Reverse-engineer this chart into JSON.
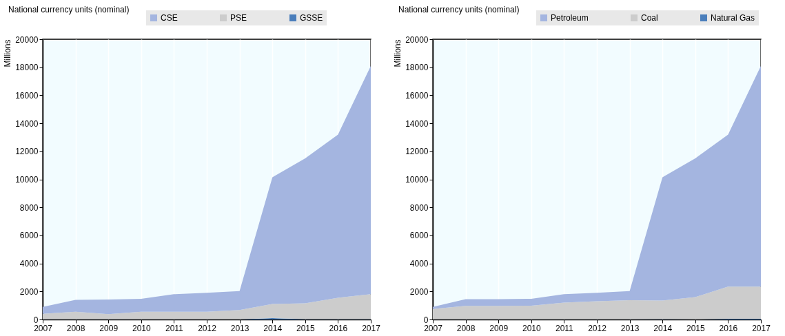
{
  "chart_data": [
    {
      "type": "area",
      "stacked": true,
      "ylabel": "Millions",
      "annotations": [
        "National currency units (nominal)"
      ],
      "x": [
        2007,
        2008,
        2009,
        2010,
        2011,
        2012,
        2013,
        2014,
        2015,
        2016,
        2017
      ],
      "xlim": [
        2007,
        2017
      ],
      "xticks": [
        2007,
        2008,
        2009,
        2010,
        2011,
        2012,
        2013,
        2014,
        2015,
        2016,
        2017
      ],
      "ylim": [
        0,
        20000
      ],
      "yticks": [
        0,
        2000,
        4000,
        6000,
        8000,
        10000,
        12000,
        14000,
        16000,
        18000,
        20000
      ],
      "grid": "x",
      "legend": "top",
      "series": [
        {
          "name": "GSSE",
          "color": "#4a7ebb",
          "values": [
            10,
            10,
            10,
            10,
            10,
            10,
            10,
            100,
            20,
            20,
            20
          ]
        },
        {
          "name": "PSE",
          "color": "#cccccc",
          "values": [
            390,
            540,
            370,
            540,
            540,
            540,
            670,
            1000,
            1130,
            1530,
            1780
          ]
        },
        {
          "name": "CSE",
          "color": "#a4b5e0",
          "values": [
            500,
            850,
            1050,
            930,
            1250,
            1350,
            1350,
            9050,
            10350,
            11650,
            16300
          ]
        }
      ]
    },
    {
      "type": "area",
      "stacked": true,
      "ylabel": "Millions",
      "annotations": [
        "National currency units (nominal)"
      ],
      "x": [
        2007,
        2008,
        2009,
        2010,
        2011,
        2012,
        2013,
        2014,
        2015,
        2016,
        2017
      ],
      "xlim": [
        2007,
        2017
      ],
      "xticks": [
        2007,
        2008,
        2009,
        2010,
        2011,
        2012,
        2013,
        2014,
        2015,
        2016,
        2017
      ],
      "ylim": [
        0,
        20000
      ],
      "yticks": [
        0,
        2000,
        4000,
        6000,
        8000,
        10000,
        12000,
        14000,
        16000,
        18000,
        20000
      ],
      "grid": "x",
      "legend": "top",
      "series": [
        {
          "name": "Natural Gas",
          "color": "#4a7ebb",
          "values": [
            10,
            10,
            10,
            10,
            10,
            10,
            10,
            30,
            10,
            50,
            50
          ]
        },
        {
          "name": "Coal",
          "color": "#cccccc",
          "values": [
            740,
            960,
            960,
            970,
            1190,
            1290,
            1370,
            1320,
            1590,
            2300,
            2300
          ]
        },
        {
          "name": "Petroleum",
          "color": "#a4b5e0",
          "values": [
            150,
            480,
            480,
            500,
            600,
            600,
            650,
            8800,
            9900,
            10850,
            15750
          ]
        }
      ]
    }
  ]
}
